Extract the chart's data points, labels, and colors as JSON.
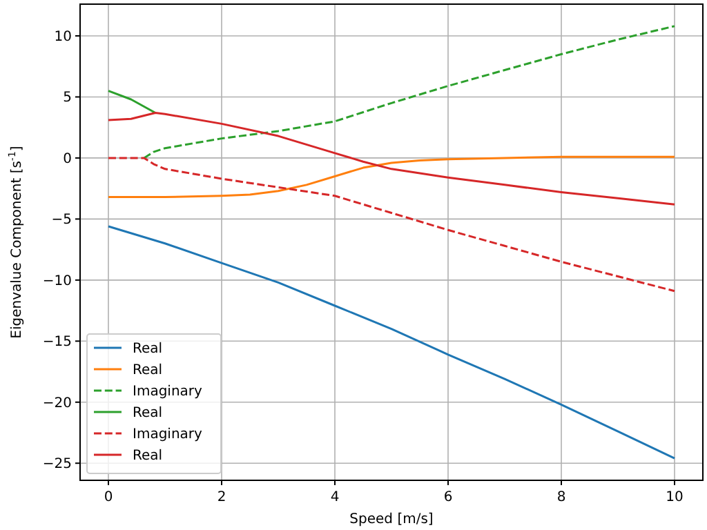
{
  "chart_data": {
    "type": "line",
    "xlabel": "Speed [m/s]",
    "ylabel": "Eigenvalue Component [s$^{-1}$]",
    "xlim": [
      -0.5,
      10.5
    ],
    "ylim": [
      -26.4,
      12.6
    ],
    "xticks": [
      0,
      2,
      4,
      6,
      8,
      10
    ],
    "yticks": [
      {
        "value": -25,
        "label": "−25"
      },
      {
        "value": -20,
        "label": "−20"
      },
      {
        "value": -15,
        "label": "−15"
      },
      {
        "value": -10,
        "label": "−10"
      },
      {
        "value": -5,
        "label": "−5"
      },
      0,
      5,
      10
    ],
    "grid": true,
    "legend": "bottom left",
    "marker": "none",
    "series": [
      {
        "name": "Real",
        "color": "#1f77b4",
        "line_style": "solid",
        "x": [
          0,
          1,
          2,
          3,
          4,
          5,
          6,
          7,
          8,
          9,
          10
        ],
        "values": [
          -5.6,
          -7.0,
          -8.6,
          -10.2,
          -12.1,
          -14.0,
          -16.1,
          -18.1,
          -20.2,
          -22.4,
          -24.6
        ]
      },
      {
        "name": "Real",
        "color": "#ff7f0e",
        "line_style": "solid",
        "x": [
          0,
          1,
          2,
          2.5,
          3,
          3.5,
          4,
          4.5,
          5,
          5.5,
          6,
          7,
          8,
          10
        ],
        "values": [
          -3.2,
          -3.2,
          -3.1,
          -3.0,
          -2.7,
          -2.2,
          -1.5,
          -0.8,
          -0.4,
          -0.2,
          -0.1,
          0.0,
          0.1,
          0.1
        ]
      },
      {
        "name": "Imaginary",
        "color": "#2ca02c",
        "line_style": "dashed",
        "x": [
          0.63,
          0.8,
          1,
          2,
          3,
          4,
          5,
          6,
          7,
          8,
          9,
          10
        ],
        "values": [
          0,
          0.5,
          0.8,
          1.6,
          2.2,
          3.0,
          4.5,
          5.9,
          7.2,
          8.5,
          9.7,
          10.8
        ]
      },
      {
        "name": "Real",
        "color": "#2ca02c",
        "line_style": "solid",
        "x": [
          0,
          0.4,
          0.83
        ],
        "values": [
          5.5,
          4.8,
          3.7
        ]
      },
      {
        "name": "Imaginary",
        "color": "#d62728",
        "line_style": "dashed",
        "x": [
          0,
          0.63,
          0.8,
          1,
          2,
          3,
          4,
          5,
          6,
          7,
          8,
          9,
          10
        ],
        "values": [
          0,
          0,
          -0.5,
          -0.9,
          -1.7,
          -2.4,
          -3.1,
          -4.5,
          -5.9,
          -7.2,
          -8.5,
          -9.7,
          -10.9
        ]
      },
      {
        "name": "Real",
        "color": "#d62728",
        "line_style": "solid",
        "x": [
          0,
          0.4,
          0.83,
          1,
          2,
          3,
          4,
          4.5,
          5,
          6,
          7,
          8,
          9,
          10
        ],
        "values": [
          3.1,
          3.2,
          3.7,
          3.6,
          2.8,
          1.8,
          0.4,
          -0.3,
          -0.9,
          -1.6,
          -2.2,
          -2.8,
          -3.3,
          -3.8
        ]
      }
    ]
  }
}
